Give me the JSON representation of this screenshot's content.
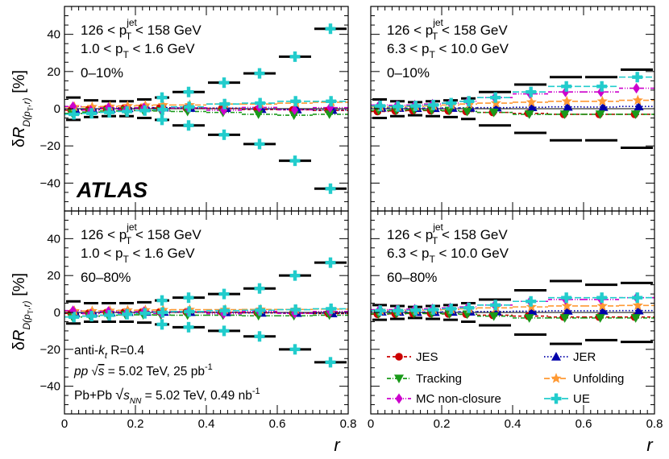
{
  "chart_data": {
    "type": "scatter",
    "layout": "2x2 panels",
    "x_label": "r",
    "y_label_parts": {
      "delta": "δ",
      "R": "R",
      "sub_prefix": "D(p",
      "sub_T": "T",
      "sub_suffix": ",r)",
      "unit": "[%]"
    },
    "xlim": [
      0,
      0.8
    ],
    "ylim": [
      -55,
      55
    ],
    "x_ticks": [
      0,
      0.2,
      0.4,
      0.6,
      0.8
    ],
    "x_tick_labels": [
      "0",
      "0.2",
      "0.4",
      "0.6",
      "0.8"
    ],
    "y_ticks": [
      -40,
      -20,
      0,
      20,
      40
    ],
    "y_tick_labels": [
      "−40",
      "−20",
      "0",
      "20",
      "40"
    ],
    "atlas_label": "ATLAS",
    "info_lines": {
      "jet_def_a": "anti-",
      "jet_def_k": "k",
      "jet_def_t": "t",
      "jet_def_b": " R=0.4",
      "pp_a": "pp",
      "pp_sqrt_s": "s",
      "pp_b": " = 5.02 TeV, 25 pb",
      "pp_exp": "-1",
      "pbpb_a": "Pb+Pb ",
      "pbpb_sqrt_s": "s",
      "pbpb_nn": "NN",
      "pbpb_b": " = 5.02 TeV, 0.49 nb",
      "pbpb_exp": "-1"
    },
    "legend": [
      {
        "name": "JES",
        "color": "#cc0000",
        "marker": "circle",
        "dash": "4,3"
      },
      {
        "name": "JER",
        "color": "#0000aa",
        "marker": "triangle-up",
        "dash": "1.5,2.5"
      },
      {
        "name": "Tracking",
        "color": "#1a9a1a",
        "marker": "triangle-down",
        "dash": "5,2,1,2"
      },
      {
        "name": "Unfolding",
        "color": "#ff9933",
        "marker": "star",
        "dash": "7,3"
      },
      {
        "name": "MC non-closure",
        "color": "#cc00cc",
        "marker": "diamond",
        "dash": "5,2,1,2,1,2"
      },
      {
        "name": "UE",
        "color": "#22cccc",
        "marker": "cross",
        "dash": "8,3"
      }
    ],
    "r_centers": [
      0.025,
      0.075,
      0.125,
      0.175,
      0.225,
      0.275,
      0.35,
      0.45,
      0.55,
      0.65,
      0.75
    ],
    "r_edges": [
      0,
      0.05,
      0.1,
      0.15,
      0.2,
      0.25,
      0.3,
      0.4,
      0.5,
      0.6,
      0.7,
      0.8
    ],
    "panels": [
      {
        "id": "top-left",
        "label_jet": "126 < p",
        "label_jet_sup": "jet",
        "label_jet_sub": "T",
        "label_jet_end": " < 158 GeV",
        "label_trk": "1.0 < p",
        "label_trk_sub": "T",
        "label_trk_end": " < 1.6 GeV",
        "centrality": "0–10%",
        "total_up": [
          6,
          4.5,
          4,
          4,
          5,
          6,
          9,
          14,
          19,
          28,
          43
        ],
        "total_down": [
          -6,
          -4.5,
          -4,
          -4,
          -5,
          -6,
          -9,
          -14,
          -19,
          -28,
          -43
        ],
        "series": {
          "JES": [
            -0.8,
            -0.4,
            0,
            0.4,
            0.6,
            0.4,
            0.3,
            0.2,
            -0.4,
            -0.6,
            -0.9
          ],
          "JER": [
            -0.4,
            -0.3,
            0,
            0.3,
            0.6,
            0.6,
            0.4,
            0.3,
            -0.2,
            -0.4,
            -0.7
          ],
          "Tracking": [
            -2.5,
            -1.8,
            -1.2,
            -1,
            -1,
            -1.2,
            -1.5,
            -2,
            -3,
            -3.5,
            -3
          ],
          "Unfolding": [
            1,
            1,
            1.2,
            1.5,
            1.8,
            2,
            2,
            2.5,
            2.5,
            3,
            3.5
          ],
          "MC non-closure": [
            1.2,
            -0.8,
            0.6,
            -0.5,
            0.5,
            -0.6,
            0.5,
            -0.8,
            0.7,
            -0.6,
            0.6
          ],
          "UE": [
            -3,
            -2.5,
            -2,
            -1.5,
            -1,
            -0.5,
            1,
            2.5,
            3,
            4,
            4
          ]
        }
      },
      {
        "id": "top-right",
        "label_jet": "126 < p",
        "label_jet_sup": "jet",
        "label_jet_sub": "T",
        "label_jet_end": " < 158 GeV",
        "label_trk": "6.3 < p",
        "label_trk_sub": "T",
        "label_trk_end": " < 10.0 GeV",
        "centrality": "0–10%",
        "total_up": [
          5,
          4,
          3.5,
          4,
          4.5,
          5.5,
          9,
          13,
          17,
          17,
          21
        ],
        "total_down": [
          -5,
          -4,
          -3.5,
          -4,
          -4.5,
          -5.5,
          -9,
          -13,
          -17,
          -17,
          -21
        ],
        "series": {
          "JES": [
            -1.5,
            -1.2,
            -1,
            -1,
            -1.2,
            -1.5,
            -2,
            -2.5,
            -3,
            -3,
            -3
          ],
          "JER": [
            0.5,
            0.4,
            0.3,
            0.3,
            0.4,
            0.5,
            0.6,
            0.8,
            1,
            0.9,
            1.2
          ],
          "Tracking": [
            -1,
            -0.8,
            -0.6,
            -0.8,
            -1,
            -1.5,
            -2,
            -3,
            -3,
            -3,
            -3
          ],
          "Unfolding": [
            1,
            1,
            1.2,
            1.5,
            2,
            2.5,
            3,
            3.5,
            4,
            4,
            4.5
          ],
          "MC non-closure": [
            2,
            1.8,
            2,
            2.5,
            3,
            4,
            6,
            8,
            9,
            9,
            11
          ],
          "UE": [
            1.5,
            1.2,
            1.5,
            2,
            3,
            4,
            6,
            9,
            12,
            12,
            17
          ]
        }
      },
      {
        "id": "bottom-left",
        "label_jet": "126 < p",
        "label_jet_sup": "jet",
        "label_jet_sub": "T",
        "label_jet_end": " < 158 GeV",
        "label_trk": "1.0 < p",
        "label_trk_sub": "T",
        "label_trk_end": " < 1.6 GeV",
        "centrality": "60–80%",
        "total_up": [
          6,
          5,
          5,
          5,
          5.5,
          6.5,
          8,
          10,
          13,
          20,
          27
        ],
        "total_down": [
          -6,
          -5,
          -5,
          -5,
          -5.5,
          -6.5,
          -8,
          -10,
          -13,
          -20,
          -27
        ],
        "series": {
          "JES": [
            -0.5,
            -0.3,
            0,
            0.2,
            0.3,
            0.3,
            0.2,
            0.1,
            -0.2,
            -0.4,
            -0.6
          ],
          "JER": [
            -0.3,
            -0.2,
            0,
            0.2,
            0.3,
            0.3,
            0.2,
            0.1,
            -0.2,
            -0.3,
            -0.5
          ],
          "Tracking": [
            -2.5,
            -2,
            -1.5,
            -1.3,
            -1.3,
            -1.4,
            -1.5,
            -1.5,
            -1.8,
            -1.8,
            -1.5
          ],
          "Unfolding": [
            0.8,
            0.8,
            1,
            1.2,
            1.3,
            1.4,
            1.5,
            1.5,
            1.6,
            1.6,
            1.8
          ],
          "MC non-closure": [
            1,
            -0.7,
            0.6,
            -0.5,
            0.5,
            -0.6,
            0.5,
            -0.7,
            0.6,
            -0.5,
            0.5
          ],
          "UE": [
            -2.5,
            -2,
            -1.5,
            -1,
            -0.5,
            0,
            0.5,
            1,
            1.2,
            1.5,
            2
          ]
        }
      },
      {
        "id": "bottom-right",
        "label_jet": "126 < p",
        "label_jet_sup": "jet",
        "label_jet_sub": "T",
        "label_jet_end": " < 158 GeV",
        "label_trk": "6.3 < p",
        "label_trk_sub": "T",
        "label_trk_end": " < 10.0 GeV",
        "centrality": "60–80%",
        "total_up": [
          4,
          3.5,
          3,
          3.5,
          4,
          5,
          7,
          12,
          17,
          15,
          16
        ],
        "total_down": [
          -4,
          -3.5,
          -3,
          -3.5,
          -4,
          -5,
          -7,
          -12,
          -17,
          -15,
          -16
        ],
        "series": {
          "JES": [
            -1,
            -0.8,
            -0.6,
            -0.6,
            -0.8,
            -1,
            -1.5,
            -2,
            -2.5,
            -2.5,
            -2.5
          ],
          "JER": [
            0.4,
            0.3,
            0.2,
            0.2,
            0.3,
            0.4,
            0.5,
            0.7,
            0.9,
            0.9,
            1
          ],
          "Tracking": [
            -0.8,
            -0.6,
            -0.5,
            -0.6,
            -0.8,
            -1,
            -2,
            -3,
            -3,
            -3,
            -3
          ],
          "Unfolding": [
            1,
            1,
            1.2,
            1.4,
            1.6,
            2,
            2.5,
            3,
            3.5,
            3.5,
            3.8
          ],
          "MC non-closure": [
            1.5,
            1.5,
            1.8,
            2,
            2.5,
            3,
            4,
            6,
            7,
            7,
            8
          ],
          "UE": [
            1,
            1,
            1.2,
            1.5,
            2,
            2.5,
            4,
            6,
            8,
            8,
            8
          ]
        }
      }
    ]
  }
}
